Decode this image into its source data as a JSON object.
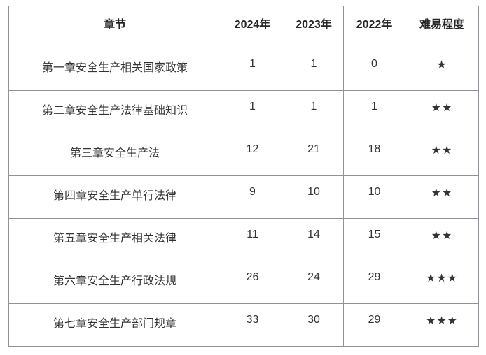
{
  "table": {
    "columns": [
      "章节",
      "2024年",
      "2023年",
      "2022年",
      "难易程度"
    ],
    "rows": [
      [
        "第一章安全生产相关国家政策",
        "1",
        "1",
        "0",
        "★"
      ],
      [
        "第二章安全生产法律基础知识",
        "1",
        "1",
        "1",
        "★★"
      ],
      [
        "第三章安全生产法",
        "12",
        "21",
        "18",
        "★★"
      ],
      [
        "第四章安全生产单行法律",
        "9",
        "10",
        "10",
        "★★"
      ],
      [
        "第五章安全生产相关法律",
        "11",
        "14",
        "15",
        "★★"
      ],
      [
        "第六章安全生产行政法规",
        "26",
        "24",
        "29",
        "★★★"
      ],
      [
        "第七章安全生产部门规章",
        "33",
        "30",
        "29",
        "★★★"
      ]
    ]
  },
  "colors": {
    "border": "#91919a",
    "header_text": "#262626",
    "body_text": "#333333",
    "background": "#ffffff"
  }
}
